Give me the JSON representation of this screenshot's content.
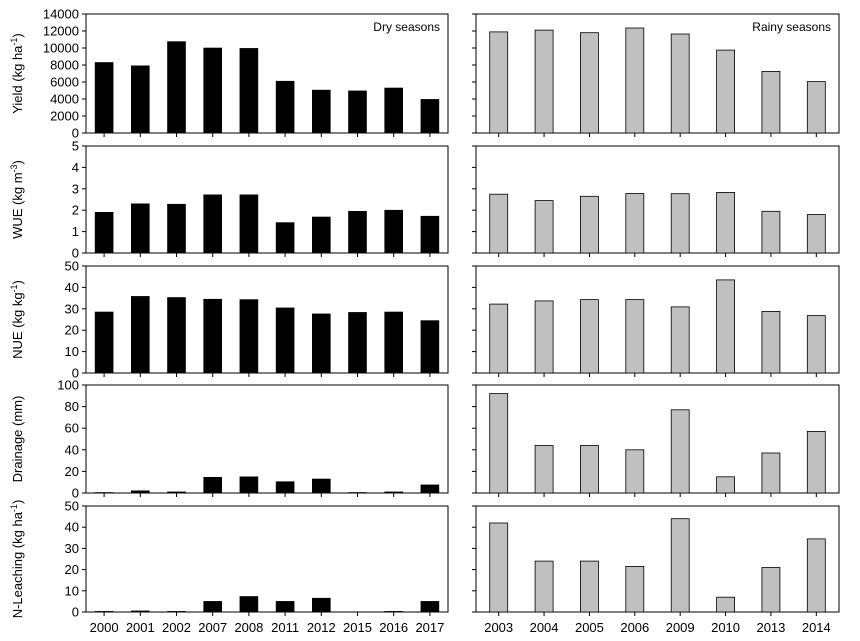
{
  "chart_data": {
    "type": "bar",
    "layout": "5 rows x 2 columns of panels sharing x axes per column",
    "columns": [
      {
        "label": "Dry seasons",
        "bar_color": "#000000",
        "categories": [
          "2000",
          "2001",
          "2002",
          "2007",
          "2008",
          "2011",
          "2012",
          "2015",
          "2016",
          "2017"
        ]
      },
      {
        "label": "Rainy seasons",
        "bar_color": "#c0c0c0",
        "categories": [
          "2003",
          "2004",
          "2005",
          "2006",
          "2009",
          "2010",
          "2013",
          "2014"
        ]
      }
    ],
    "rows": [
      {
        "id": "yield",
        "ylabel": "Yield  (kg ha",
        "ylabel_sup": "-1",
        "ylabel_end": ")",
        "ylim": [
          0,
          14000
        ],
        "ticks": [
          "0",
          "2000",
          "4000",
          "6000",
          "8000",
          "10000",
          "12000",
          "14000"
        ],
        "dry": [
          8300,
          7900,
          10750,
          10000,
          9950,
          6100,
          5050,
          4950,
          5300,
          3950
        ],
        "rainy": [
          11900,
          12100,
          11800,
          12350,
          11650,
          9750,
          7250,
          6050
        ]
      },
      {
        "id": "wue",
        "ylabel": "WUE (kg m",
        "ylabel_sup": "-3",
        "ylabel_end": ")",
        "ylim": [
          0,
          5
        ],
        "ticks": [
          "0",
          "1",
          "2",
          "3",
          "4",
          "5"
        ],
        "dry": [
          1.9,
          2.3,
          2.28,
          2.72,
          2.72,
          1.42,
          1.68,
          1.95,
          2.0,
          1.72
        ],
        "rainy": [
          2.75,
          2.45,
          2.65,
          2.78,
          2.77,
          2.83,
          1.95,
          1.8
        ]
      },
      {
        "id": "nue",
        "ylabel": "NUE  (kg kg",
        "ylabel_sup": "-1",
        "ylabel_end": ")",
        "ylim": [
          0,
          50
        ],
        "ticks": [
          "0",
          "10",
          "20",
          "30",
          "40",
          "50"
        ],
        "dry": [
          28.5,
          35.8,
          35.3,
          34.5,
          34.3,
          30.4,
          27.6,
          28.3,
          28.5,
          24.5
        ],
        "rainy": [
          32.2,
          33.7,
          34.3,
          34.3,
          30.9,
          43.5,
          28.8,
          26.8
        ]
      },
      {
        "id": "drainage",
        "ylabel": "Drainage (mm)",
        "ylabel_sup": "",
        "ylabel_end": "",
        "ylim": [
          0,
          100
        ],
        "ticks": [
          "0",
          "20",
          "40",
          "60",
          "80",
          "100"
        ],
        "dry": [
          0.5,
          2.0,
          1.0,
          14.5,
          15.0,
          10.5,
          13.0,
          0.5,
          1.0,
          7.5
        ],
        "rainy": [
          92,
          44,
          44,
          40,
          77,
          15,
          37,
          57
        ]
      },
      {
        "id": "n_leaching",
        "ylabel": "N-Leaching (kg ha",
        "ylabel_sup": "-1",
        "ylabel_end": ")",
        "ylim": [
          0,
          50
        ],
        "ticks": [
          "0",
          "10",
          "20",
          "30",
          "40",
          "50"
        ],
        "dry": [
          0.3,
          0.5,
          0.3,
          5.0,
          7.3,
          5.0,
          6.5,
          0,
          0.3,
          5.0
        ],
        "rainy": [
          42,
          24,
          24,
          21.5,
          44,
          7,
          21,
          34.5
        ]
      }
    ]
  }
}
